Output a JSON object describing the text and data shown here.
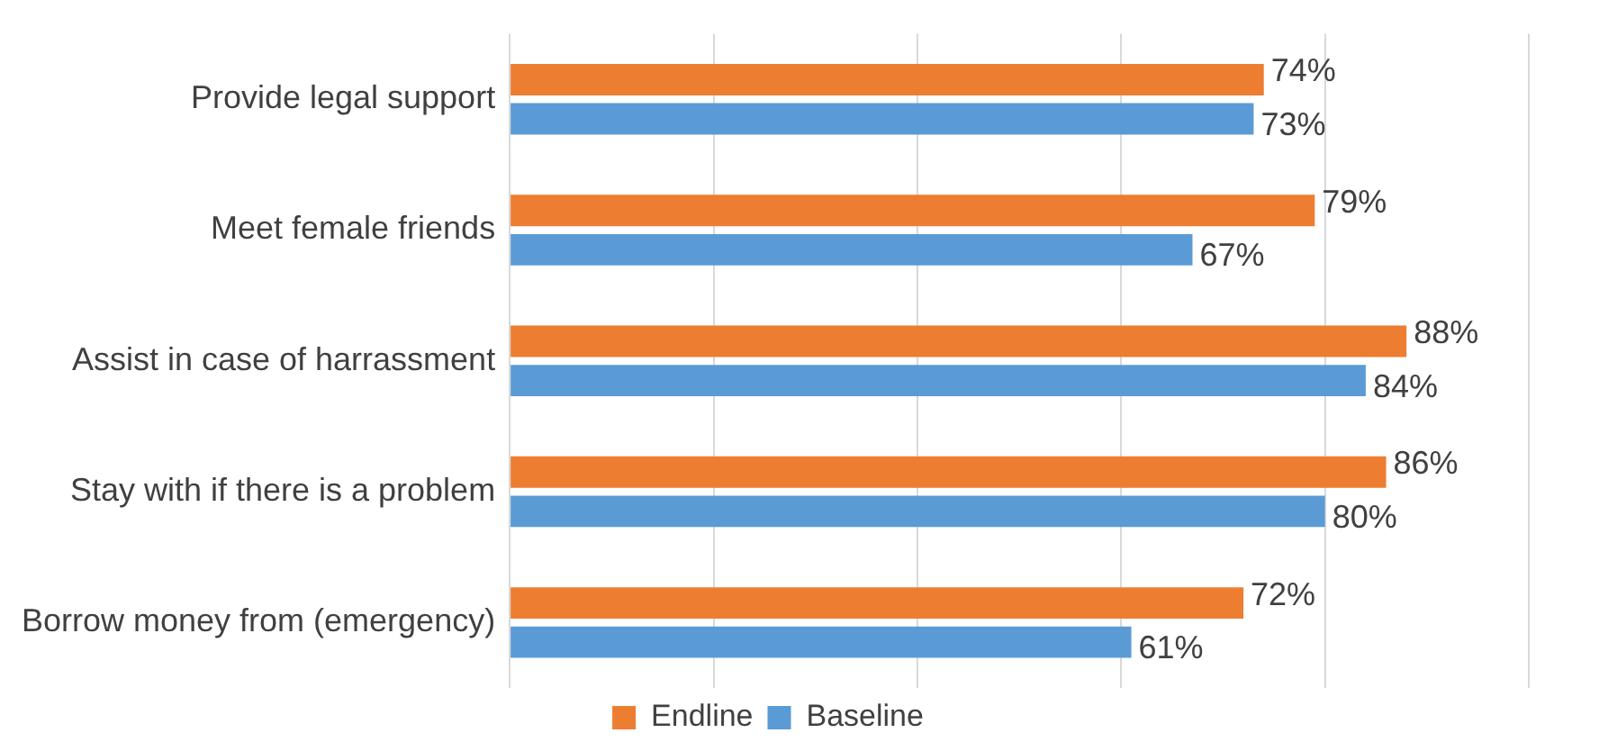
{
  "chart_data": {
    "type": "bar",
    "orientation": "horizontal",
    "categories": [
      "Provide legal support",
      "Meet female friends",
      "Assist in case of harrassment",
      "Stay with if there is a problem",
      "Borrow money from (emergency)"
    ],
    "series": [
      {
        "name": "Endline",
        "color": "#ed7d31",
        "values": [
          74,
          79,
          88,
          86,
          72
        ],
        "value_labels": [
          "74%",
          "79%",
          "88%",
          "86%",
          "72%"
        ]
      },
      {
        "name": "Baseline",
        "color": "#5b9bd5",
        "values": [
          73,
          67,
          84,
          80,
          61
        ],
        "value_labels": [
          "73%",
          "67%",
          "84%",
          "80%",
          "61%"
        ]
      }
    ],
    "xlim": [
      0,
      100
    ],
    "xticks": [
      {
        "value": 0,
        "label": null
      },
      {
        "value": 20,
        "label": null
      },
      {
        "value": 40,
        "label": null
      },
      {
        "value": 60,
        "label": null
      },
      {
        "value": 80,
        "label": null
      },
      {
        "value": 100,
        "label": null
      }
    ],
    "tick_labels": "y",
    "grid": "x",
    "legend": "bottom"
  }
}
